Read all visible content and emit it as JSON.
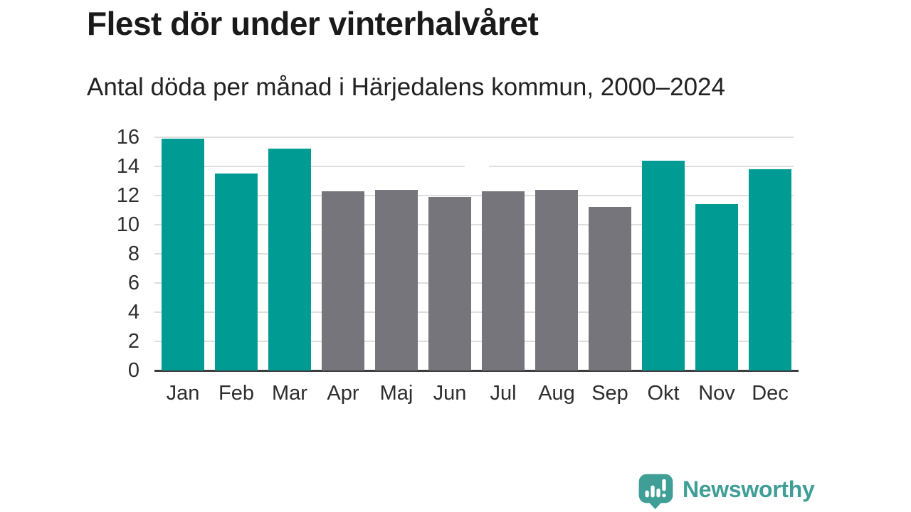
{
  "title": "Flest dör under vinterhalvåret",
  "subtitle": "Antal döda per månad i Härjedalens kommun, 2000–2024",
  "colors": {
    "title_text": "#1a1a1a",
    "subtitle_text": "#222222",
    "axis_text": "#2e2e2e",
    "gridline": "#dedede",
    "axis_line": "#3d3d3d",
    "highlight_teal": "#009c94",
    "muted_gray": "#75757b",
    "brand_teal": "#3f9e96"
  },
  "branding": {
    "name": "Newsworthy",
    "icon": "bar-chart-speech-bubble-icon",
    "color": "#3f9e96"
  },
  "chart_data": {
    "type": "bar",
    "title": "Flest dör under vinterhalvåret",
    "subtitle": "Antal döda per månad i Härjedalens kommun, 2000–2024",
    "categories": [
      "Jan",
      "Feb",
      "Mar",
      "Apr",
      "Maj",
      "Jun",
      "Jul",
      "Aug",
      "Sep",
      "Okt",
      "Nov",
      "Dec"
    ],
    "values": [
      15.9,
      13.5,
      15.2,
      12.3,
      12.4,
      11.9,
      12.3,
      12.4,
      11.2,
      14.4,
      11.4,
      13.8
    ],
    "bar_colors": [
      "#009c94",
      "#009c94",
      "#009c94",
      "#75757b",
      "#75757b",
      "#75757b",
      "#75757b",
      "#75757b",
      "#75757b",
      "#009c94",
      "#009c94",
      "#009c94"
    ],
    "highlighted_categories": [
      "Jan",
      "Feb",
      "Mar",
      "Okt",
      "Nov",
      "Dec"
    ],
    "xlabel": "",
    "ylabel": "",
    "ylim": [
      0,
      16
    ],
    "yticks": [
      0,
      2,
      4,
      6,
      8,
      10,
      12,
      14,
      16
    ],
    "grid": true,
    "legend": false
  }
}
